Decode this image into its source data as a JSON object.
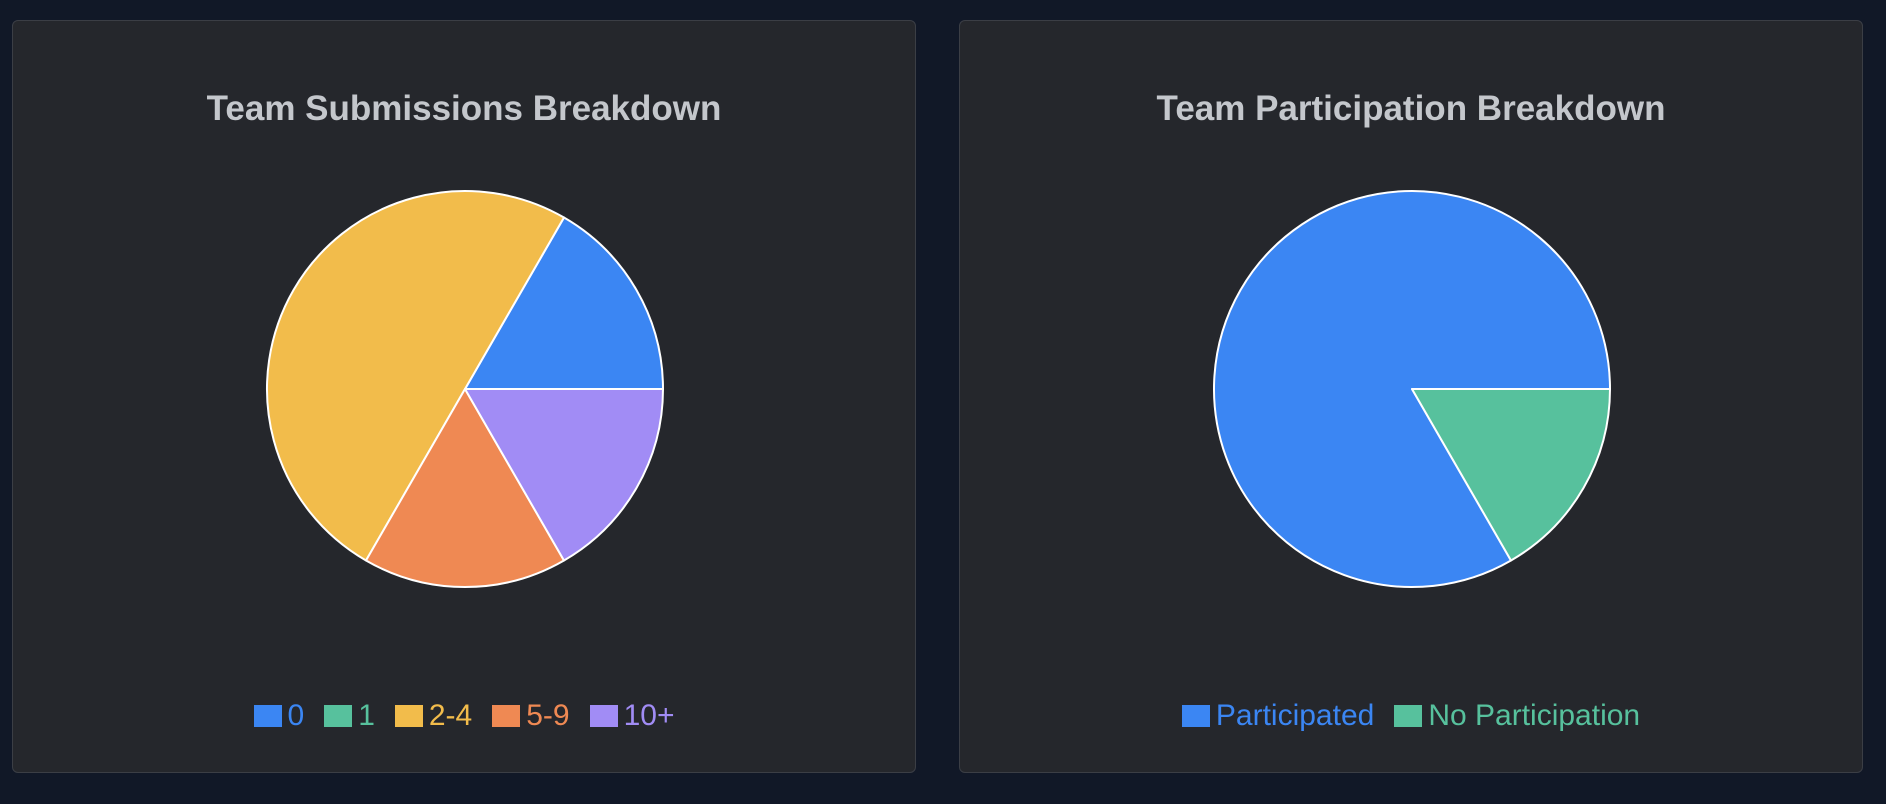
{
  "chart_data": [
    {
      "type": "pie",
      "title": "Team Submissions Breakdown",
      "categories": [
        "0",
        "1",
        "2-4",
        "5-9",
        "10+"
      ],
      "values": [
        1,
        0,
        3,
        1,
        1
      ],
      "colors": [
        "#3b86f3",
        "#57c19d",
        "#f2bc4b",
        "#ef8953",
        "#a18cf5"
      ],
      "legend_position": "bottom",
      "start": "3 o'clock, counter-clockwise"
    },
    {
      "type": "pie",
      "title": "Team Participation Breakdown",
      "categories": [
        "Participated",
        "No Participation"
      ],
      "values": [
        5,
        1
      ],
      "colors": [
        "#3b86f3",
        "#57c19d"
      ],
      "legend_position": "bottom",
      "start": "3 o'clock, counter-clockwise"
    }
  ]
}
